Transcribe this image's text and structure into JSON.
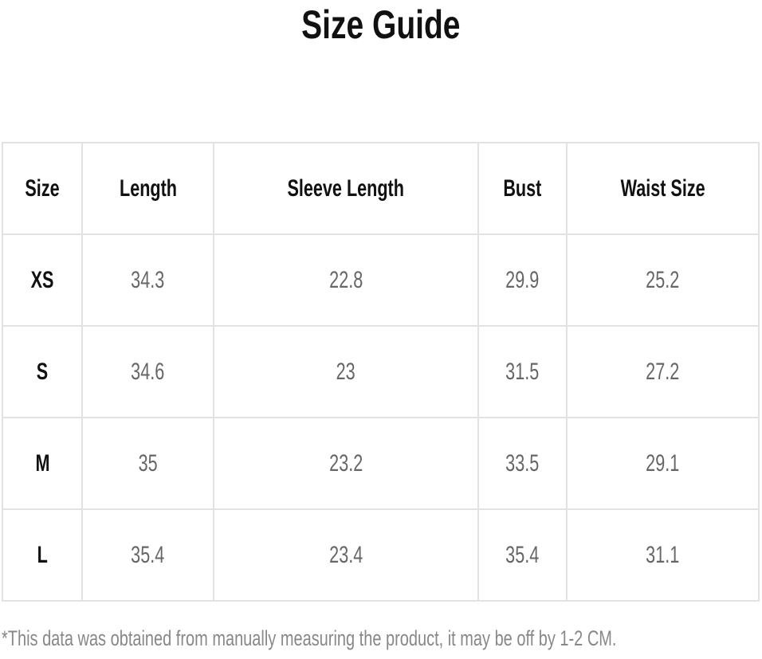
{
  "title": "Size Guide",
  "table": {
    "headers": [
      "Size",
      "Length",
      "Sleeve Length",
      "Bust",
      "Waist Size"
    ],
    "rows": [
      [
        "XS",
        "34.3",
        "22.8",
        "29.9",
        "25.2"
      ],
      [
        "S",
        "34.6",
        "23",
        "31.5",
        "27.2"
      ],
      [
        "M",
        "35",
        "23.2",
        "33.5",
        "29.1"
      ],
      [
        "L",
        "35.4",
        "23.4",
        "35.4",
        "31.1"
      ]
    ]
  },
  "note": "*This data was obtained from manually measuring the product, it may be off by 1-2 CM."
}
